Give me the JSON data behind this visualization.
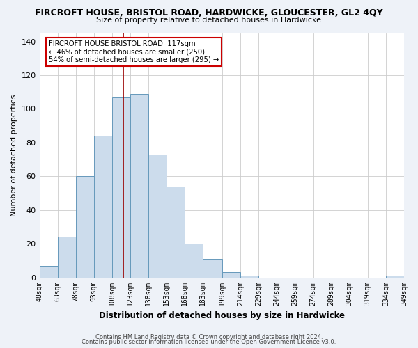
{
  "title": "FIRCROFT HOUSE, BRISTOL ROAD, HARDWICKE, GLOUCESTER, GL2 4QY",
  "subtitle": "Size of property relative to detached houses in Hardwicke",
  "xlabel": "Distribution of detached houses by size in Hardwicke",
  "ylabel": "Number of detached properties",
  "bar_color": "#ccdcec",
  "bar_edge_color": "#6699bb",
  "bin_edges": [
    48,
    63,
    78,
    93,
    108,
    123,
    138,
    153,
    168,
    183,
    199,
    214,
    229,
    244,
    259,
    274,
    289,
    304,
    319,
    334,
    349
  ],
  "bin_labels": [
    "48sqm",
    "63sqm",
    "78sqm",
    "93sqm",
    "108sqm",
    "123sqm",
    "138sqm",
    "153sqm",
    "168sqm",
    "183sqm",
    "199sqm",
    "214sqm",
    "229sqm",
    "244sqm",
    "259sqm",
    "274sqm",
    "289sqm",
    "304sqm",
    "319sqm",
    "334sqm",
    "349sqm"
  ],
  "counts": [
    7,
    24,
    60,
    84,
    107,
    109,
    73,
    54,
    20,
    11,
    3,
    1,
    0,
    0,
    0,
    0,
    0,
    0,
    0,
    1
  ],
  "vline_x": 117,
  "vline_color": "#990000",
  "ylim": [
    0,
    145
  ],
  "yticks": [
    0,
    20,
    40,
    60,
    80,
    100,
    120,
    140
  ],
  "annotation_title": "FIRCROFT HOUSE BRISTOL ROAD: 117sqm",
  "annotation_line1": "← 46% of detached houses are smaller (250)",
  "annotation_line2": "54% of semi-detached houses are larger (295) →",
  "footer1": "Contains HM Land Registry data © Crown copyright and database right 2024.",
  "footer2": "Contains public sector information licensed under the Open Government Licence v3.0.",
  "background_color": "#eef2f8",
  "plot_background": "#ffffff"
}
